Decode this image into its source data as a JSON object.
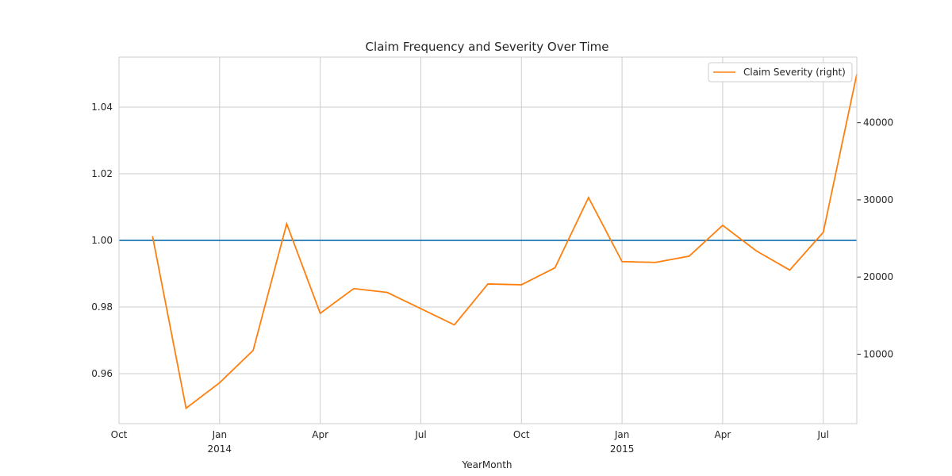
{
  "chart_data": {
    "type": "line",
    "title": "Claim Frequency and Severity Over Time",
    "xlabel": "YearMonth",
    "ylabel": "",
    "ylabel_right": "",
    "grid": true,
    "legend_placement": "top-right",
    "x_tick_labels": [
      {
        "month": "Oct",
        "year": ""
      },
      {
        "month": "Jan",
        "year": "2014"
      },
      {
        "month": "Apr",
        "year": ""
      },
      {
        "month": "Jul",
        "year": ""
      },
      {
        "month": "Oct",
        "year": ""
      },
      {
        "month": "Jan",
        "year": "2015"
      },
      {
        "month": "Apr",
        "year": ""
      },
      {
        "month": "Jul",
        "year": ""
      }
    ],
    "y_ticks_left": [
      "0.96",
      "0.98",
      "1.00",
      "1.02",
      "1.04"
    ],
    "y_ticks_right": [
      "10000",
      "20000",
      "30000",
      "40000"
    ],
    "ylim_left": [
      0.945,
      1.055
    ],
    "ylim_right": [
      1000,
      48500
    ],
    "x": [
      "2013-11",
      "2013-12",
      "2014-01",
      "2014-02",
      "2014-03",
      "2014-04",
      "2014-05",
      "2014-06",
      "2014-07",
      "2014-08",
      "2014-09",
      "2014-10",
      "2014-11",
      "2014-12",
      "2015-01",
      "2015-02",
      "2015-03",
      "2015-04",
      "2015-05",
      "2015-06",
      "2015-07",
      "2015-08"
    ],
    "series": [
      {
        "name": "",
        "axis": "left",
        "color": "#1f77b4",
        "values": [
          1.0,
          1.0,
          1.0,
          1.0,
          1.0,
          1.0,
          1.0,
          1.0,
          1.0,
          1.0,
          1.0,
          1.0,
          1.0,
          1.0,
          1.0,
          1.0,
          1.0,
          1.0,
          1.0,
          1.0,
          1.0,
          1.0
        ]
      },
      {
        "name": "Claim Severity (right)",
        "axis": "right",
        "color": "#ff7f0e",
        "values": [
          25300,
          3000,
          6300,
          10500,
          26900,
          15300,
          18500,
          18000,
          15900,
          13800,
          19100,
          19000,
          21200,
          30300,
          22000,
          21900,
          22700,
          26700,
          23400,
          20900,
          25800,
          46300
        ]
      }
    ]
  }
}
